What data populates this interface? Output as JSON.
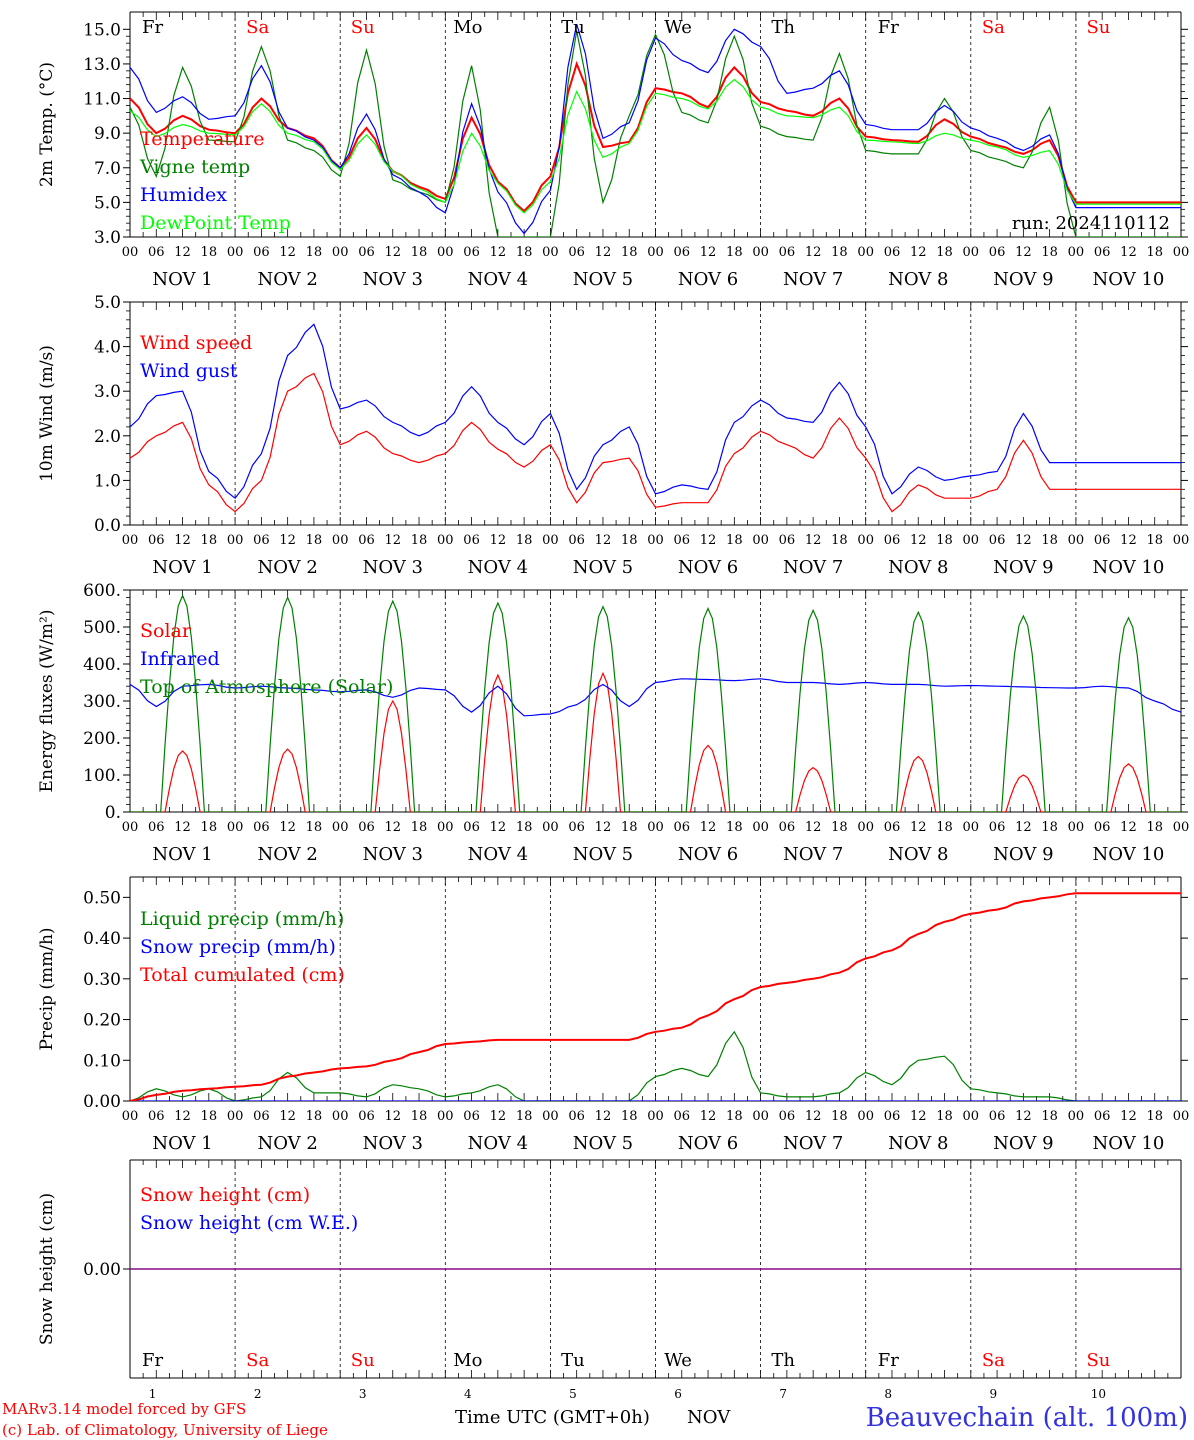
{
  "days": {
    "names": [
      "Fr",
      "Sa",
      "Su",
      "Mo",
      "Tu",
      "We",
      "Th",
      "Fr",
      "Sa",
      "Su"
    ],
    "weekend": [
      false,
      true,
      true,
      false,
      false,
      false,
      false,
      false,
      true,
      true
    ],
    "dates": [
      "NOV  1",
      "NOV  2",
      "NOV  3",
      "NOV  4",
      "NOV  5",
      "NOV  6",
      "NOV  7",
      "NOV  8",
      "NOV  9",
      "NOV 10"
    ],
    "numbers": [
      "1",
      "2",
      "3",
      "4",
      "5",
      "6",
      "7",
      "8",
      "9",
      "10"
    ],
    "hour_ticks": [
      "00",
      "06",
      "12",
      "18"
    ],
    "final_tick": "00"
  },
  "colors": {
    "red": "#ff0000",
    "green": "#008000",
    "blue": "#0000ff",
    "lightgreen": "#00ff00",
    "purple": "#800080",
    "location": "#3333dd",
    "weekend": "#ff0000"
  },
  "footer": {
    "model": "MARv3.14 model forced by GFS",
    "copyright": "(c) Lab. of Climatology, University of Liege",
    "time_label": "Time UTC (GMT+0h)",
    "month": "NOV",
    "location": "Beauvechain (alt. 100m)"
  },
  "chart_data": [
    {
      "type": "line",
      "ylabel": "2m Temp. (°C)",
      "ylim": [
        3.0,
        16.0
      ],
      "ytick_labels": [
        "3.0",
        "5.0",
        "7.0",
        "9.0",
        "11.0",
        "13.0",
        "15.0"
      ],
      "run_label": "run: 2024110112",
      "x_unit": "hours since NOV 1 00 UTC",
      "series": [
        {
          "name": "Temperature",
          "color": "#ff0000",
          "x": [
            0,
            6,
            12,
            18,
            24,
            30,
            36,
            42,
            48,
            54,
            60,
            66,
            72,
            78,
            84,
            90,
            96,
            102,
            108,
            114,
            120,
            126,
            132,
            138,
            144,
            150,
            156,
            162,
            168,
            174,
            180,
            186,
            192,
            198,
            204,
            210,
            216,
            222,
            228,
            234,
            240
          ],
          "y": [
            11.0,
            9.0,
            10.0,
            9.2,
            9.0,
            11.0,
            9.3,
            8.7,
            7.0,
            9.3,
            6.8,
            5.9,
            5.2,
            9.9,
            6.2,
            4.5,
            6.5,
            13.0,
            8.2,
            8.5,
            11.6,
            11.3,
            10.5,
            12.8,
            10.8,
            10.3,
            10.0,
            11.0,
            8.8,
            8.6,
            8.5,
            9.8,
            8.8,
            8.3,
            7.8,
            8.6,
            5.0,
            5.0,
            5.0,
            5.0,
            5.0
          ]
        },
        {
          "name": "Vigne temp",
          "color": "#008000",
          "x": [
            0,
            6,
            12,
            18,
            24,
            30,
            36,
            42,
            48,
            54,
            60,
            66,
            72,
            78,
            84,
            90,
            96,
            102,
            108,
            114,
            120,
            126,
            132,
            138,
            144,
            150,
            156,
            162,
            168,
            174,
            180,
            186,
            192,
            198,
            204,
            210,
            216,
            222,
            228,
            234,
            240
          ],
          "y": [
            10.5,
            6.5,
            12.8,
            8.6,
            8.5,
            14.0,
            8.6,
            8.0,
            6.5,
            13.8,
            6.3,
            5.6,
            5.0,
            12.9,
            3.0,
            3.0,
            3.0,
            14.9,
            5.0,
            10.0,
            14.7,
            10.2,
            9.6,
            14.6,
            9.4,
            8.8,
            8.6,
            13.6,
            8.0,
            7.8,
            7.8,
            11.0,
            8.0,
            7.5,
            7.0,
            10.5,
            3.0,
            3.0,
            3.0,
            3.0,
            3.0
          ]
        },
        {
          "name": "Humidex",
          "color": "#0000ff",
          "x": [
            0,
            6,
            12,
            18,
            24,
            30,
            36,
            42,
            48,
            54,
            60,
            66,
            72,
            78,
            84,
            90,
            96,
            102,
            108,
            114,
            120,
            126,
            132,
            138,
            144,
            150,
            156,
            162,
            168,
            174,
            180,
            186,
            192,
            198,
            204,
            210,
            216,
            222,
            228,
            234,
            240
          ],
          "y": [
            12.8,
            10.2,
            11.1,
            9.8,
            10.0,
            12.9,
            9.3,
            8.6,
            7.0,
            10.1,
            6.6,
            5.6,
            4.4,
            10.7,
            5.6,
            3.2,
            5.7,
            15.3,
            8.7,
            9.6,
            14.5,
            13.2,
            12.5,
            15.0,
            14.0,
            11.3,
            11.6,
            12.6,
            9.5,
            9.2,
            9.2,
            10.6,
            9.3,
            8.7,
            8.0,
            8.9,
            4.7,
            4.7,
            4.7,
            4.7,
            4.7
          ]
        },
        {
          "name": "DewPoint Temp",
          "color": "#00ff00",
          "x": [
            0,
            6,
            12,
            18,
            24,
            30,
            36,
            42,
            48,
            54,
            60,
            66,
            72,
            78,
            84,
            90,
            96,
            102,
            108,
            114,
            120,
            126,
            132,
            138,
            144,
            150,
            156,
            162,
            168,
            174,
            180,
            186,
            192,
            198,
            204,
            210,
            216,
            222,
            228,
            234,
            240
          ],
          "y": [
            10.3,
            8.8,
            9.5,
            9.0,
            8.9,
            10.7,
            9.0,
            8.5,
            6.9,
            8.9,
            6.8,
            5.8,
            5.0,
            9.0,
            6.1,
            4.4,
            6.2,
            11.4,
            7.6,
            8.4,
            11.3,
            11.0,
            10.4,
            12.1,
            10.5,
            10.0,
            9.9,
            10.5,
            8.6,
            8.5,
            8.4,
            9.0,
            8.6,
            8.2,
            7.6,
            8.0,
            4.9,
            4.9,
            4.9,
            4.9,
            4.9
          ]
        }
      ]
    },
    {
      "type": "line",
      "ylabel": "10m Wind (m/s)",
      "ylim": [
        0.0,
        5.0
      ],
      "ytick_labels": [
        "0.0",
        "1.0",
        "2.0",
        "3.0",
        "4.0",
        "5.0"
      ],
      "x_unit": "hours since NOV 1 00 UTC",
      "series": [
        {
          "name": "Wind speed",
          "color": "#ff0000",
          "x": [
            0,
            6,
            12,
            18,
            24,
            30,
            36,
            42,
            48,
            54,
            60,
            66,
            72,
            78,
            84,
            90,
            96,
            102,
            108,
            114,
            120,
            126,
            132,
            138,
            144,
            150,
            156,
            162,
            168,
            174,
            180,
            186,
            192,
            198,
            204,
            210,
            216,
            222,
            228,
            234,
            240
          ],
          "y": [
            1.5,
            2.0,
            2.3,
            0.9,
            0.3,
            1.0,
            3.0,
            3.4,
            1.8,
            2.1,
            1.6,
            1.4,
            1.6,
            2.3,
            1.7,
            1.3,
            1.8,
            0.5,
            1.4,
            1.5,
            0.4,
            0.5,
            0.5,
            1.6,
            2.1,
            1.8,
            1.5,
            2.4,
            1.5,
            0.3,
            0.9,
            0.6,
            0.6,
            0.8,
            1.9,
            0.8,
            0.8,
            0.8,
            0.8,
            0.8,
            0.8
          ]
        },
        {
          "name": "Wind gust",
          "color": "#0000ff",
          "x": [
            0,
            6,
            12,
            18,
            24,
            30,
            36,
            42,
            48,
            54,
            60,
            66,
            72,
            78,
            84,
            90,
            96,
            102,
            108,
            114,
            120,
            126,
            132,
            138,
            144,
            150,
            156,
            162,
            168,
            174,
            180,
            186,
            192,
            198,
            204,
            210,
            216,
            222,
            228,
            234,
            240
          ],
          "y": [
            2.2,
            2.9,
            3.0,
            1.2,
            0.6,
            1.6,
            3.8,
            4.5,
            2.6,
            2.8,
            2.3,
            2.0,
            2.3,
            3.1,
            2.3,
            1.8,
            2.5,
            0.8,
            1.8,
            2.2,
            0.7,
            0.9,
            0.8,
            2.3,
            2.8,
            2.4,
            2.3,
            3.2,
            2.2,
            0.7,
            1.3,
            1.0,
            1.1,
            1.2,
            2.5,
            1.4,
            1.4,
            1.4,
            1.4,
            1.4,
            1.4
          ]
        }
      ]
    },
    {
      "type": "line",
      "ylabel": "Energy fluxes (W/m²)",
      "ylim": [
        0.0,
        600.0
      ],
      "ytick_labels": [
        "0.",
        "100.",
        "200.",
        "300.",
        "400.",
        "500.",
        "600."
      ],
      "x_unit": "hours since NOV 1 00 UTC",
      "series": [
        {
          "name": "Solar",
          "color": "#ff0000",
          "peaks": [
            165,
            170,
            300,
            370,
            375,
            180,
            120,
            150,
            100,
            130
          ]
        },
        {
          "name": "Infrared",
          "color": "#0000ff",
          "x": [
            0,
            6,
            12,
            18,
            24,
            30,
            36,
            42,
            48,
            54,
            60,
            66,
            72,
            78,
            84,
            90,
            96,
            102,
            108,
            114,
            120,
            126,
            132,
            138,
            144,
            150,
            156,
            162,
            168,
            174,
            180,
            186,
            192,
            198,
            204,
            210,
            216,
            222,
            228,
            234,
            240
          ],
          "y": [
            345,
            285,
            340,
            345,
            335,
            340,
            335,
            330,
            325,
            330,
            310,
            335,
            330,
            270,
            340,
            260,
            265,
            290,
            345,
            285,
            350,
            360,
            358,
            355,
            360,
            350,
            350,
            345,
            350,
            345,
            345,
            340,
            342,
            340,
            338,
            336,
            335,
            340,
            335,
            300,
            270
          ]
        },
        {
          "name": "Top of Atmosphere (Solar)",
          "color": "#008000",
          "peaks": [
            585,
            580,
            570,
            565,
            555,
            550,
            545,
            540,
            530,
            525
          ]
        }
      ]
    },
    {
      "type": "line",
      "ylabel": "Precip (mm/h)",
      "ylim": [
        0.0,
        0.55
      ],
      "ytick_labels": [
        "0.00",
        "0.10",
        "0.20",
        "0.30",
        "0.40",
        "0.50"
      ],
      "x_unit": "hours since NOV 1 00 UTC",
      "series": [
        {
          "name": "Liquid precip (mm/h)",
          "color": "#008000",
          "x": [
            0,
            6,
            12,
            18,
            24,
            30,
            36,
            42,
            48,
            54,
            60,
            66,
            72,
            78,
            84,
            90,
            96,
            102,
            108,
            114,
            120,
            126,
            132,
            138,
            144,
            150,
            156,
            162,
            168,
            174,
            180,
            186,
            192,
            198,
            204,
            210,
            216,
            222,
            228,
            234,
            240
          ],
          "y": [
            0.0,
            0.03,
            0.01,
            0.03,
            0.0,
            0.01,
            0.07,
            0.02,
            0.02,
            0.01,
            0.04,
            0.03,
            0.01,
            0.02,
            0.04,
            0.0,
            0.0,
            0.0,
            0.0,
            0.0,
            0.06,
            0.08,
            0.06,
            0.17,
            0.02,
            0.01,
            0.01,
            0.02,
            0.07,
            0.04,
            0.1,
            0.11,
            0.03,
            0.02,
            0.01,
            0.01,
            0.0,
            0.0,
            0.0,
            0.0,
            0.0
          ]
        },
        {
          "name": "Snow precip (mm/h)",
          "color": "#0000ff",
          "x": [
            0,
            240
          ],
          "y": [
            0.0,
            0.0
          ]
        },
        {
          "name": "Total cumulated (cm)",
          "color": "#ff0000",
          "x": [
            0,
            6,
            12,
            18,
            24,
            30,
            36,
            42,
            48,
            54,
            60,
            66,
            72,
            78,
            84,
            90,
            96,
            102,
            108,
            114,
            120,
            126,
            132,
            138,
            144,
            150,
            156,
            162,
            168,
            174,
            180,
            186,
            192,
            198,
            204,
            210,
            216,
            222,
            228,
            234,
            240
          ],
          "y": [
            0.0,
            0.015,
            0.025,
            0.03,
            0.035,
            0.04,
            0.06,
            0.07,
            0.08,
            0.085,
            0.1,
            0.12,
            0.14,
            0.145,
            0.15,
            0.15,
            0.15,
            0.15,
            0.15,
            0.15,
            0.17,
            0.18,
            0.21,
            0.25,
            0.28,
            0.29,
            0.3,
            0.315,
            0.35,
            0.37,
            0.41,
            0.44,
            0.46,
            0.47,
            0.49,
            0.5,
            0.51,
            0.51,
            0.51,
            0.51,
            0.51
          ]
        }
      ]
    },
    {
      "type": "line",
      "ylabel": "Snow height (cm)",
      "ylim": [
        -1.0,
        1.0
      ],
      "ytick_labels": [
        "0.00"
      ],
      "x_unit": "hours since NOV 1 00 UTC",
      "series": [
        {
          "name": "Snow height (cm)",
          "color": "#ff0000",
          "x": [
            0,
            240
          ],
          "y": [
            0.0,
            0.0
          ]
        },
        {
          "name": "Snow height (cm W.E.)",
          "color": "#0000ff",
          "x": [
            0,
            240
          ],
          "y": [
            0.0,
            0.0
          ]
        }
      ]
    }
  ]
}
